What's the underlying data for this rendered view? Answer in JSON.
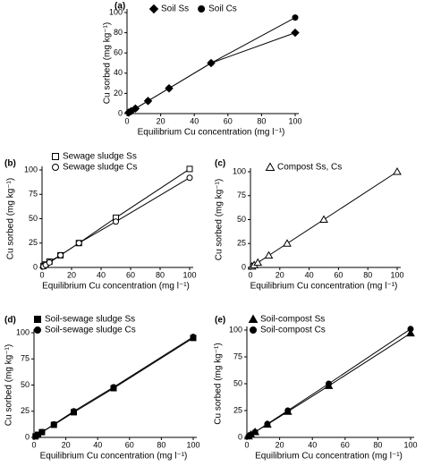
{
  "chart_data": [
    {
      "type": "scatter",
      "title": "(a)",
      "xlabel": "Equilibrium Cu concentration (mg l⁻¹)",
      "ylabel": "Cu sorbed (mg kg⁻¹)",
      "x": [
        1,
        2.5,
        5,
        12.5,
        25,
        50,
        100
      ],
      "xlim": [
        0,
        100
      ],
      "xticks": [
        0,
        20,
        40,
        60,
        80,
        100
      ],
      "ylim": [
        0,
        100
      ],
      "yticks": [
        0,
        20,
        40,
        60,
        80,
        100
      ],
      "legend": "upper left",
      "series": [
        {
          "name": "Soil Ss",
          "marker": "diamond",
          "color": "#000000",
          "fill": "#000000",
          "values": [
            1,
            2.5,
            5,
            12.5,
            25,
            50,
            80
          ]
        },
        {
          "name": "Soil Cs",
          "marker": "circle",
          "color": "#000000",
          "fill": "#000000",
          "values": [
            1,
            2.5,
            5,
            12.5,
            25,
            50,
            95
          ]
        }
      ]
    },
    {
      "type": "scatter",
      "title": "(b)",
      "xlabel": "Equilibrium Cu concentration (mg l⁻¹)",
      "ylabel": "Cu sorbed (mg kg⁻¹)",
      "x": [
        1,
        2.5,
        5,
        12.5,
        25,
        50,
        100
      ],
      "xlim": [
        0,
        100
      ],
      "xticks": [
        0,
        20,
        40,
        60,
        80,
        100
      ],
      "ylim": [
        0,
        100
      ],
      "yticks": [
        0,
        25,
        50,
        75,
        100
      ],
      "legend": "upper left",
      "series": [
        {
          "name": "Sewage sludge Ss",
          "marker": "square",
          "color": "#000000",
          "fill": "#ffffff",
          "values": [
            1.5,
            3,
            6,
            12.5,
            25,
            51,
            101
          ]
        },
        {
          "name": "Sewage sludge Cs",
          "marker": "circle",
          "color": "#000000",
          "fill": "#ffffff",
          "values": [
            1,
            2.5,
            5,
            12.5,
            25,
            47,
            92
          ]
        }
      ]
    },
    {
      "type": "scatter",
      "title": "(c)",
      "xlabel": "Equilibrium Cu concentration (mg l⁻¹)",
      "ylabel": "Cu sorbed (mg kg⁻¹)",
      "x": [
        1,
        2.5,
        5,
        12.5,
        25,
        50,
        100
      ],
      "xlim": [
        0,
        100
      ],
      "xticks": [
        0,
        20,
        40,
        60,
        80,
        100
      ],
      "ylim": [
        0,
        100
      ],
      "yticks": [
        0,
        25,
        50,
        75,
        100
      ],
      "legend": "upper left",
      "series": [
        {
          "name": "Compost Ss, Cs",
          "marker": "triangle",
          "color": "#000000",
          "fill": "#ffffff",
          "values": [
            1,
            2.5,
            5,
            12.5,
            25,
            50,
            100
          ]
        }
      ]
    },
    {
      "type": "scatter",
      "title": "(d)",
      "xlabel": "Equilibrium Cu concentration (mg l⁻¹)",
      "ylabel": "Cu sorbed (mg kg⁻¹)",
      "x": [
        1,
        2.5,
        5,
        12.5,
        25,
        50,
        100
      ],
      "xlim": [
        0,
        100
      ],
      "xticks": [
        0,
        20,
        40,
        60,
        80,
        100
      ],
      "ylim": [
        0,
        100
      ],
      "yticks": [
        0,
        25,
        50,
        75,
        100
      ],
      "legend": "upper left",
      "series": [
        {
          "name": "Soil-sewage sludge Ss",
          "marker": "square",
          "color": "#000000",
          "fill": "#000000",
          "values": [
            1,
            2.5,
            5,
            12,
            24,
            47,
            95
          ]
        },
        {
          "name": "Soil-sewage sludge Cs",
          "marker": "circle",
          "color": "#000000",
          "fill": "#000000",
          "values": [
            1,
            2.5,
            5,
            12.5,
            25,
            48,
            96
          ]
        }
      ]
    },
    {
      "type": "scatter",
      "title": "(e)",
      "xlabel": "Equilibrium Cu concentration (mg l⁻¹)",
      "ylabel": "Cu sorbed (mg kg⁻¹)",
      "x": [
        1,
        2.5,
        5,
        12.5,
        25,
        50,
        100
      ],
      "xlim": [
        0,
        100
      ],
      "xticks": [
        0,
        20,
        40,
        60,
        80,
        100
      ],
      "ylim": [
        0,
        100
      ],
      "yticks": [
        0,
        25,
        50,
        75,
        100
      ],
      "legend": "upper left",
      "series": [
        {
          "name": "Soil-compost Ss",
          "marker": "triangle",
          "color": "#000000",
          "fill": "#000000",
          "values": [
            1,
            2.5,
            5,
            12,
            24,
            48,
            97
          ]
        },
        {
          "name": "Soil-compost Cs",
          "marker": "circle",
          "color": "#000000",
          "fill": "#000000",
          "values": [
            1,
            2.5,
            5,
            12.5,
            25,
            50,
            101
          ]
        }
      ]
    }
  ]
}
